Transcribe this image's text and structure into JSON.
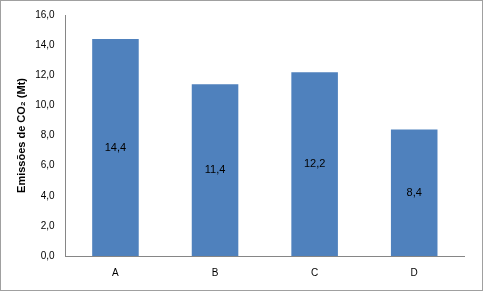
{
  "chart_data": {
    "type": "bar",
    "y_label": "Emissões de CO₂ (Mt)",
    "categories": [
      "A",
      "B",
      "C",
      "D"
    ],
    "values": [
      14.4,
      11.4,
      12.2,
      8.4
    ],
    "value_labels": [
      "14,4",
      "11,4",
      "12,2",
      "8,4"
    ],
    "color": "#4f81bd",
    "ylim": [
      0,
      16
    ],
    "yticks": [
      {
        "value": 0,
        "label": "0,0"
      },
      {
        "value": 2,
        "label": "2,0"
      },
      {
        "value": 4,
        "label": "4,0"
      },
      {
        "value": 6,
        "label": "6,0"
      },
      {
        "value": 8,
        "label": "8,0"
      },
      {
        "value": 10,
        "label": "10,0"
      },
      {
        "value": 12,
        "label": "12,0"
      },
      {
        "value": 14,
        "label": "14,0"
      },
      {
        "value": 16,
        "label": "16,0"
      }
    ],
    "grid": false,
    "data_labels": true
  }
}
